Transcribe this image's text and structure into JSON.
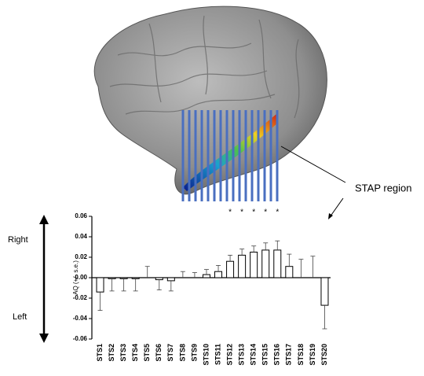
{
  "chart_data": {
    "type": "bar",
    "y_label": "AQ (+/- s.e.)",
    "categories": [
      "STS1",
      "STS2",
      "STS3",
      "STS4",
      "STS5",
      "STS6",
      "STS7",
      "STS8",
      "STS9",
      "STS10",
      "STS11",
      "STS12",
      "STS13",
      "STS14",
      "STS15",
      "STS16",
      "STS17",
      "STS18",
      "STS19",
      "STS20"
    ],
    "values": [
      -0.014,
      -0.001,
      -0.001,
      -0.001,
      0,
      -0.002,
      -0.003,
      0,
      0,
      0.003,
      0.006,
      0.016,
      0.022,
      0.025,
      0.027,
      0.027,
      0.011,
      0,
      0,
      -0.027
    ],
    "errors": [
      0.018,
      0.012,
      0.012,
      0.012,
      0.011,
      0.01,
      0.01,
      0.006,
      0.005,
      0.005,
      0.006,
      0.006,
      0.006,
      0.006,
      0.007,
      0.009,
      0.012,
      0.018,
      0.021,
      0.023
    ],
    "significant": [
      false,
      false,
      false,
      false,
      false,
      false,
      false,
      false,
      false,
      false,
      false,
      true,
      true,
      true,
      true,
      true,
      false,
      false,
      false,
      false
    ],
    "significance_label": "*",
    "color": "#ffffff",
    "ylim": [
      -0.06,
      0.06
    ],
    "yticks": [
      -0.06,
      -0.04,
      -0.02,
      {
        "value": 0,
        "label": "0.00"
      },
      0.02,
      0.04,
      0.06
    ],
    "direction_labels": [
      "Right",
      "Left"
    ],
    "region_label": "STAP region"
  }
}
